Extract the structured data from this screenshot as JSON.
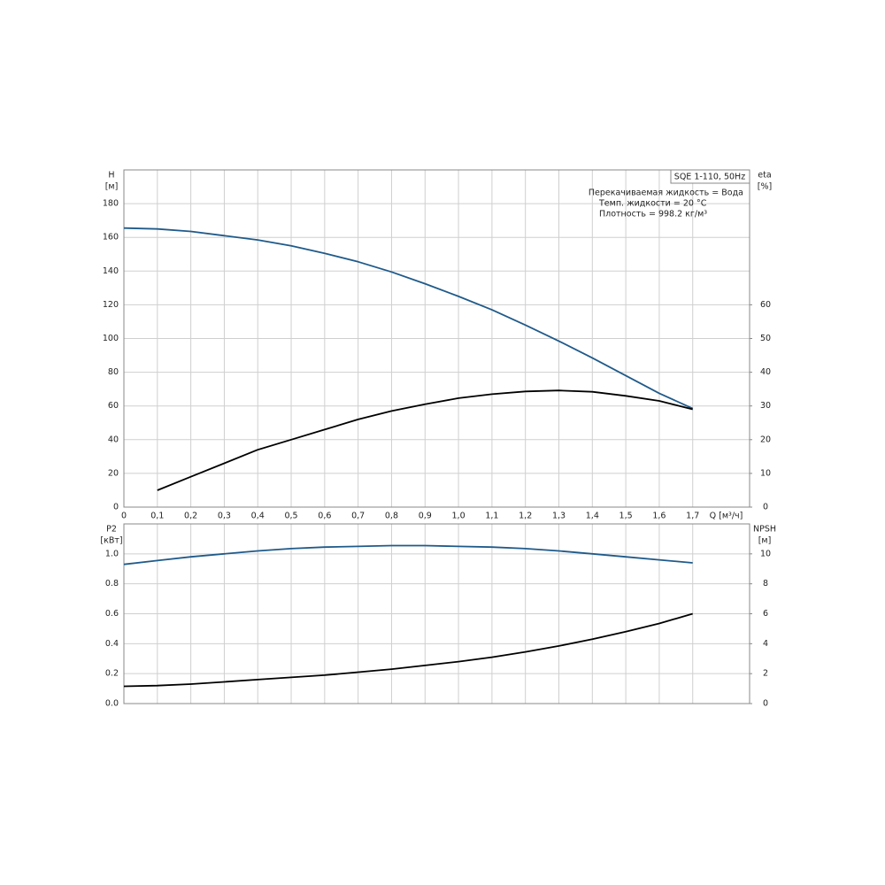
{
  "chart_data": [
    {
      "type": "line",
      "title": "SQE 1-110, 50Hz",
      "annotations": [
        "Перекачиваемая жидкость = Вода",
        "Темп. жидкости = 20 °C",
        "Плотность = 998.2 кг/м³"
      ],
      "y_label": "H",
      "y_unit": "[м]",
      "y2_label": "eta",
      "y2_unit": "[%]",
      "x_label": "Q [м³/ч]",
      "x": [
        0,
        0.1,
        0.2,
        0.3,
        0.4,
        0.5,
        0.6,
        0.7,
        0.8,
        0.9,
        1.0,
        1.1,
        1.2,
        1.3,
        1.4,
        1.5,
        1.6,
        1.7
      ],
      "xlim": [
        0,
        1.87
      ],
      "xticks": [
        0,
        {
          "value": 0.1,
          "label": "0,1"
        },
        {
          "value": 0.2,
          "label": "0,2"
        },
        {
          "value": 0.3,
          "label": "0,3"
        },
        {
          "value": 0.4,
          "label": "0,4"
        },
        {
          "value": 0.5,
          "label": "0,5"
        },
        {
          "value": 0.6,
          "label": "0,6"
        },
        {
          "value": 0.7,
          "label": "0,7"
        },
        {
          "value": 0.8,
          "label": "0,8"
        },
        {
          "value": 0.9,
          "label": "0,9"
        },
        {
          "value": 1.0,
          "label": "1,0"
        },
        {
          "value": 1.1,
          "label": "1,1"
        },
        {
          "value": 1.2,
          "label": "1,2"
        },
        {
          "value": 1.3,
          "label": "1,3"
        },
        {
          "value": 1.4,
          "label": "1,4"
        },
        {
          "value": 1.5,
          "label": "1,5"
        },
        {
          "value": 1.6,
          "label": "1,6"
        },
        {
          "value": 1.7,
          "label": "1,7"
        }
      ],
      "ylim": [
        0,
        200
      ],
      "yticks": [
        0,
        20,
        40,
        60,
        80,
        100,
        120,
        140,
        160,
        180
      ],
      "y2lim": [
        0,
        100
      ],
      "y2ticks": [
        0,
        10,
        20,
        30,
        40,
        50,
        60
      ],
      "grid": true,
      "series": [
        {
          "name": "H",
          "color": "#1f5a8a",
          "values": [
            165.5,
            165,
            163.5,
            161,
            158.5,
            155,
            150.5,
            145.5,
            139.5,
            132.5,
            125,
            117,
            108,
            98.5,
            88.5,
            78,
            67.5,
            58.5
          ]
        },
        {
          "name": "eta",
          "color": "#000000",
          "axis": "y2",
          "values": [
            null,
            5,
            9,
            13,
            17,
            20,
            23,
            26,
            28.5,
            30.5,
            32.3,
            33.5,
            34.3,
            34.6,
            34.2,
            33,
            31.5,
            29
          ]
        }
      ]
    },
    {
      "type": "line",
      "y_label": "P2",
      "y_unit": "[кВт]",
      "y2_label": "NPSH",
      "y2_unit": "[м]",
      "x": [
        0,
        0.1,
        0.2,
        0.3,
        0.4,
        0.5,
        0.6,
        0.7,
        0.8,
        0.9,
        1.0,
        1.1,
        1.2,
        1.3,
        1.4,
        1.5,
        1.6,
        1.7
      ],
      "xlim": [
        0,
        1.87
      ],
      "ylim": [
        0,
        1.2
      ],
      "yticks": [
        {
          "value": 0,
          "label": "0.0"
        },
        {
          "value": 0.2,
          "label": "0.2"
        },
        {
          "value": 0.4,
          "label": "0.4"
        },
        {
          "value": 0.6,
          "label": "0.6"
        },
        {
          "value": 0.8,
          "label": "0.8"
        },
        {
          "value": 1.0,
          "label": "1.0"
        }
      ],
      "y2lim": [
        0,
        12
      ],
      "y2ticks": [
        0,
        2,
        4,
        6,
        8,
        10
      ],
      "grid": true,
      "series": [
        {
          "name": "P2",
          "color": "#1f5a8a",
          "values": [
            0.93,
            0.955,
            0.98,
            1.0,
            1.02,
            1.035,
            1.045,
            1.05,
            1.055,
            1.055,
            1.05,
            1.045,
            1.035,
            1.02,
            1.0,
            0.98,
            0.96,
            0.94
          ]
        },
        {
          "name": "NPSH",
          "color": "#000000",
          "axis": "y2",
          "values": [
            1.15,
            1.2,
            1.3,
            1.45,
            1.6,
            1.75,
            1.9,
            2.1,
            2.3,
            2.55,
            2.8,
            3.1,
            3.45,
            3.85,
            4.3,
            4.8,
            5.35,
            6
          ]
        }
      ]
    }
  ]
}
